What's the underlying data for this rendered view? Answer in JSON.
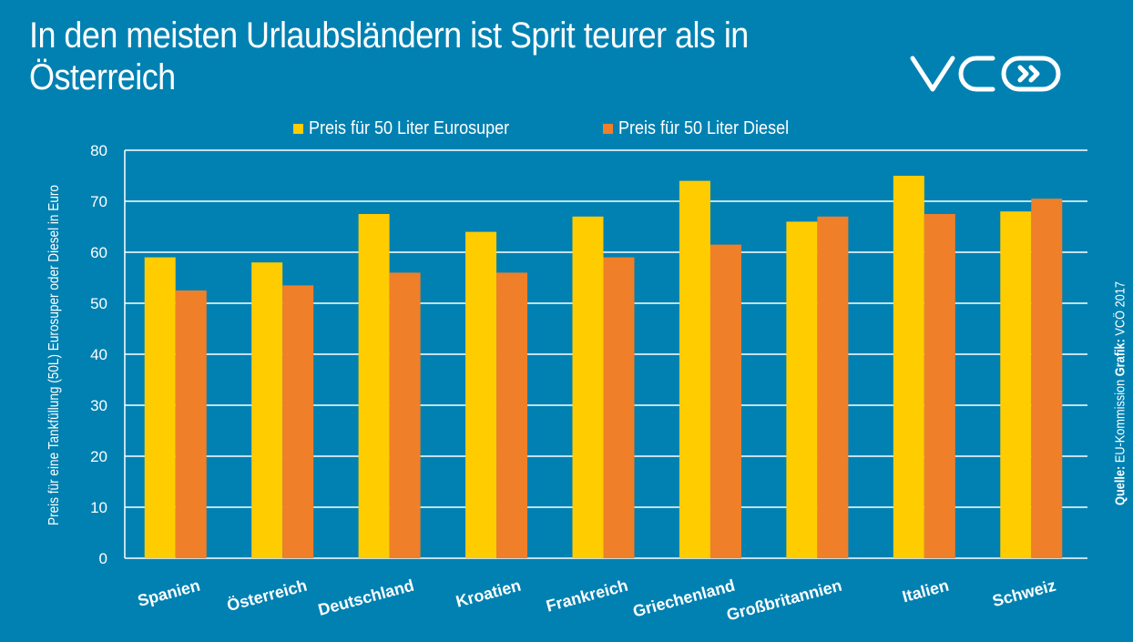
{
  "brand": {
    "logo_text": "VCÖ",
    "logo_icon": "double-chevron-right-icon"
  },
  "colors": {
    "background": "#0081b2",
    "eurosuper": "#ffcc00",
    "diesel": "#f07f29",
    "grid": "#ffffff",
    "text": "#ffffff"
  },
  "source": {
    "label": "Quelle:",
    "text": "EU-Kommission",
    "grafik_label": "Grafik:",
    "grafik_text": "VCÖ 2017"
  },
  "chart_data": {
    "type": "bar",
    "title": "In den meisten Urlaubsländern ist Sprit teurer als in Österreich",
    "xlabel": "",
    "ylabel": "Preis für eine Tankfüllung (50L) Eurosuper oder Diesel in Euro",
    "ylim": [
      0,
      80
    ],
    "yticks": [
      0,
      10,
      20,
      30,
      40,
      50,
      60,
      70,
      80
    ],
    "grid": true,
    "legend_position": "top-center",
    "categories": [
      "Spanien",
      "Österreich",
      "Deutschland",
      "Kroatien",
      "Frankreich",
      "Griechenland",
      "Großbritannien",
      "Italien",
      "Schweiz"
    ],
    "series": [
      {
        "name": "Preis für 50 Liter Eurosuper",
        "color": "#ffcc00",
        "values": [
          59,
          58,
          67.5,
          64,
          67,
          74,
          66,
          75,
          68
        ]
      },
      {
        "name": "Preis für 50 Liter Diesel",
        "color": "#f07f29",
        "values": [
          52.5,
          53.5,
          56,
          56,
          59,
          61.5,
          67,
          67.5,
          70.5
        ]
      }
    ]
  }
}
